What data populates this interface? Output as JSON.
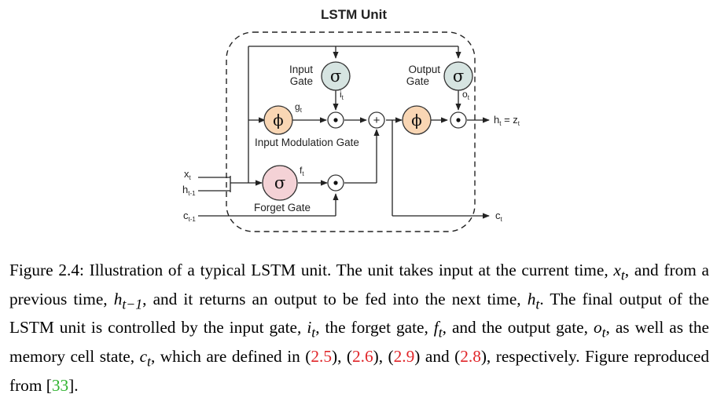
{
  "diagram": {
    "title": "LSTM Unit",
    "input_gate_label_1": "Input",
    "input_gate_label_2": "Gate",
    "output_gate_label_1": "Output",
    "output_gate_label_2": "Gate",
    "input_modulation_gate_label": "Input Modulation Gate",
    "forget_gate_label": "Forget Gate",
    "sigma_symbol": "σ",
    "phi_symbol": "ϕ",
    "mult_symbol": "•",
    "plus_symbol": "+",
    "inputs": {
      "x": "x",
      "x_sub": "t",
      "h": "h",
      "h_sub": "t-1",
      "c": "c",
      "c_sub": "t-1"
    },
    "signals": {
      "g": "g",
      "g_sub": "t",
      "i": "i",
      "i_sub": "t",
      "f": "f",
      "f_sub": "t",
      "o": "o",
      "o_sub": "t"
    },
    "outputs": {
      "h": "h",
      "h_sub": "t",
      "eq": " = z",
      "z_sub": "t",
      "c": "c",
      "c_sub": "t"
    },
    "colors": {
      "sigma_fill": "#d6e4e1",
      "phi_fill": "#f9d6b4",
      "forget_fill": "#f4d2d6",
      "node_fill": "#ffffff",
      "line": "#222222"
    }
  },
  "caption": {
    "label": "Figure 2.4:",
    "t1": " Illustration of a typical LSTM unit. The unit takes input at the current time, ",
    "xt_b": "x",
    "xt_s": "t",
    "t2": ", and from a previous time, ",
    "ht1_b": "h",
    "ht1_s": "t−1",
    "t3": ", and it returns an output to be fed into the next time, ",
    "ht_b": "h",
    "ht_s": "t",
    "t4": ". The final output of the LSTM unit is controlled by the input gate, ",
    "it_b": "i",
    "it_s": "t",
    "t5": ", the forget gate, ",
    "ft_b": "f",
    "ft_s": "t",
    "t6": ", and the output gate, ",
    "ot_b": "o",
    "ot_s": "t",
    "t7": ", as well as the memory cell state, ",
    "ct_b": "c",
    "ct_s": "t",
    "t8": ", which are defined in (",
    "ref1": "2.5",
    "t9": "), (",
    "ref2": "2.6",
    "t10": "), (",
    "ref3": "2.9",
    "t11": ") and (",
    "ref4": "2.8",
    "t12": "), respectively. Figure reproduced from [",
    "cite": "33",
    "t13": "]."
  }
}
